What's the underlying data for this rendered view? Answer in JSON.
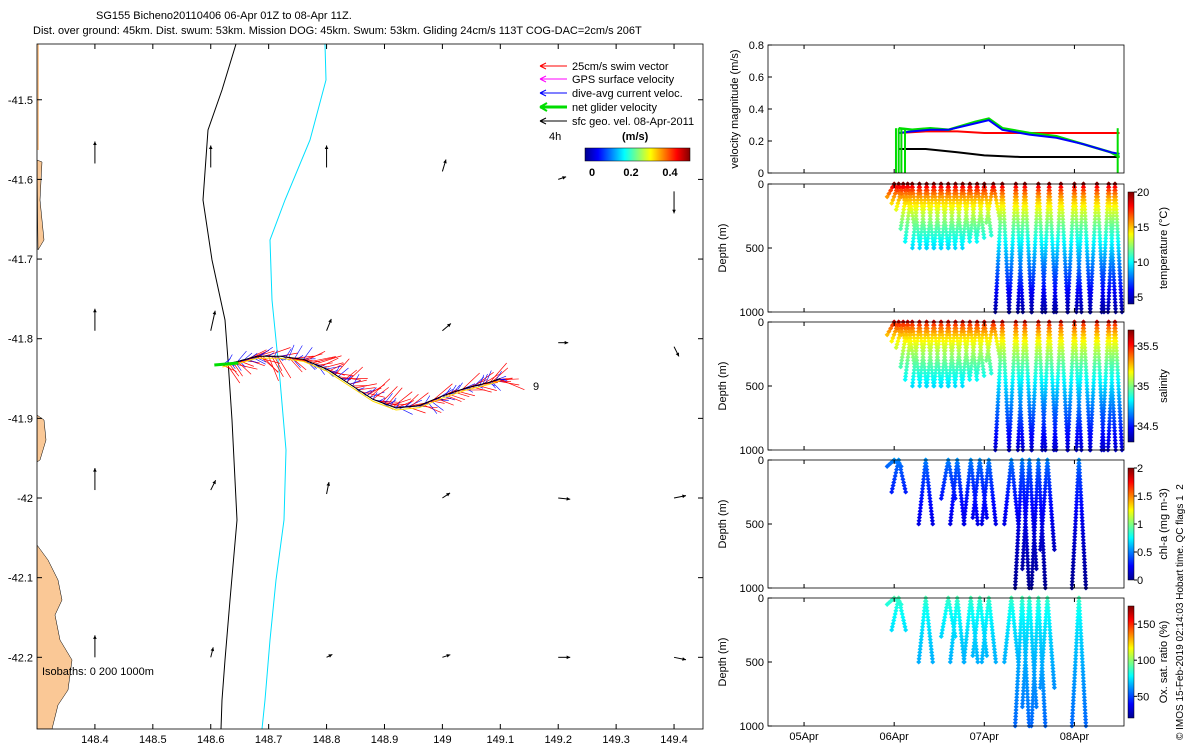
{
  "header": {
    "title_line1": "SG155 Bicheno20110406 06-Apr 01Z to 08-Apr 11Z.",
    "title_line2": "Dist. over ground: 45km. Dist. swum: 53km. Mission DOG: 45km. Swum: 53km. Gliding 24cm/s 113T COG-DAC=2cm/s 206T"
  },
  "credit": "© IMOS 15-Feb-2019 02:14:03 Hobart time. QC flags 1  2",
  "colors": {
    "land": "#FAC896",
    "swim_vector": "#ff0000",
    "gps_velocity": "#ff00ff",
    "dive_avg_current": "#0000ff",
    "net_glider": "#00dd00",
    "sfc_geo": "#000000",
    "isobath_200": "#00e0ff"
  },
  "chart_data": [
    {
      "type": "map",
      "name": "track_map",
      "xlim": [
        148.3,
        149.45
      ],
      "ylim": [
        -42.29,
        -41.43
      ],
      "xticks": [
        "148.4",
        "148.5",
        "148.6",
        "148.7",
        "148.8",
        "148.9",
        "149",
        "149.1",
        "149.2",
        "149.3",
        "149.4"
      ],
      "yticks": [
        "-41.5",
        "-41.6",
        "-41.7",
        "-41.8",
        "-41.9",
        "-42",
        "-42.1",
        "-42.2"
      ],
      "legend": [
        "25cm/s swim vector",
        "GPS surface velocity",
        "dive-avg current veloc.",
        "net glider velocity",
        "sfc geo. vel. 08-Apr-2011"
      ],
      "legend_placement": "top-right",
      "colorbar": {
        "label": "(m/s)",
        "ticks": [
          "0",
          "0.2",
          "0.4"
        ],
        "side_label": "4h"
      },
      "end_label": "9",
      "isobaths_label": "Isobaths:  0    200   1000m",
      "track": [
        [
          148.62,
          -41.833
        ],
        [
          148.65,
          -41.828
        ],
        [
          148.68,
          -41.822
        ],
        [
          148.72,
          -41.822
        ],
        [
          148.76,
          -41.826
        ],
        [
          148.8,
          -41.838
        ],
        [
          148.84,
          -41.857
        ],
        [
          148.88,
          -41.876
        ],
        [
          148.92,
          -41.887
        ],
        [
          148.96,
          -41.884
        ],
        [
          149.0,
          -41.872
        ],
        [
          149.04,
          -41.862
        ],
        [
          149.08,
          -41.855
        ],
        [
          149.1,
          -41.85
        ]
      ],
      "sfc_geo_vectors": [
        [
          148.4,
          -41.58,
          0.0,
          1.0
        ],
        [
          148.6,
          -41.585,
          0.0,
          1.0
        ],
        [
          148.8,
          -41.585,
          0.0,
          1.0
        ],
        [
          149.0,
          -41.59,
          0.15,
          0.5
        ],
        [
          149.2,
          -41.6,
          0.3,
          0.1
        ],
        [
          149.4,
          -41.615,
          0.0,
          -1.0
        ],
        [
          148.4,
          -41.79,
          0.0,
          1.0
        ],
        [
          148.6,
          -41.79,
          0.2,
          0.9
        ],
        [
          148.8,
          -41.79,
          0.2,
          0.5
        ],
        [
          149.0,
          -41.79,
          0.35,
          0.3
        ],
        [
          149.2,
          -41.805,
          0.4,
          0.0
        ],
        [
          149.4,
          -41.81,
          0.2,
          -0.4
        ],
        [
          148.4,
          -41.99,
          0.0,
          1.0
        ],
        [
          148.6,
          -41.99,
          0.2,
          0.4
        ],
        [
          148.8,
          -41.995,
          0.1,
          0.5
        ],
        [
          149.0,
          -42.0,
          0.3,
          0.2
        ],
        [
          149.2,
          -42.0,
          0.5,
          -0.05
        ],
        [
          149.4,
          -42.0,
          0.5,
          0.1
        ],
        [
          148.4,
          -42.2,
          0.0,
          1.0
        ],
        [
          148.6,
          -42.2,
          0.1,
          0.4
        ],
        [
          148.8,
          -42.2,
          0.2,
          0.1
        ],
        [
          149.0,
          -42.2,
          0.3,
          0.1
        ],
        [
          149.2,
          -42.2,
          0.5,
          0.0
        ],
        [
          149.4,
          -42.2,
          0.5,
          -0.1
        ]
      ]
    },
    {
      "type": "line",
      "name": "velocity_panel",
      "ylabel": "velocity magnitude (m/s)",
      "ylim": [
        0,
        0.8
      ],
      "yticks": [
        "0",
        "0.2",
        "0.4",
        "0.6",
        "0.8"
      ],
      "series": [
        {
          "color": "#ff0000",
          "x": [
            6.05,
            6.35,
            6.7,
            7.0,
            7.25,
            8.5
          ],
          "y": [
            0.25,
            0.26,
            0.26,
            0.25,
            0.25,
            0.25
          ]
        },
        {
          "color": "#000000",
          "x": [
            6.05,
            6.35,
            6.7,
            7.0,
            7.4,
            8.0,
            8.5
          ],
          "y": [
            0.15,
            0.15,
            0.13,
            0.11,
            0.1,
            0.1,
            0.1
          ]
        },
        {
          "color": "#00dd00",
          "x": [
            6.05,
            6.2,
            6.4,
            6.6,
            6.9,
            7.05,
            7.2,
            7.5,
            7.8,
            8.1,
            8.4,
            8.5
          ],
          "y": [
            0.28,
            0.27,
            0.28,
            0.27,
            0.32,
            0.34,
            0.28,
            0.25,
            0.23,
            0.18,
            0.13,
            0.1
          ]
        },
        {
          "color": "#0000ff",
          "x": [
            6.05,
            6.2,
            6.4,
            6.6,
            6.9,
            7.05,
            7.2,
            7.5,
            7.8,
            8.1,
            8.4,
            8.5
          ],
          "y": [
            0.25,
            0.26,
            0.27,
            0.27,
            0.31,
            0.33,
            0.27,
            0.24,
            0.22,
            0.18,
            0.13,
            0.12
          ]
        }
      ]
    },
    {
      "type": "scatter",
      "name": "temperature_panel",
      "ylabel": "Depth (m)",
      "cbar_label": "temperature (°C)",
      "cbar_ticks": [
        "5",
        "10",
        "15",
        "20"
      ],
      "clim": [
        4,
        20
      ],
      "ylim": [
        1000,
        0
      ],
      "yticks": [
        "0",
        "500",
        "1000"
      ],
      "surface_value": 20,
      "bottom_value": 4.5,
      "dives": [
        [
          6.0,
          100
        ],
        [
          6.05,
          150
        ],
        [
          6.1,
          200
        ],
        [
          6.15,
          350
        ],
        [
          6.2,
          450
        ],
        [
          6.28,
          500
        ],
        [
          6.36,
          500
        ],
        [
          6.44,
          500
        ],
        [
          6.52,
          500
        ],
        [
          6.6,
          500
        ],
        [
          6.68,
          500
        ],
        [
          6.76,
          450
        ],
        [
          6.84,
          450
        ],
        [
          6.92,
          420
        ],
        [
          7.0,
          400
        ],
        [
          7.1,
          300
        ],
        [
          7.2,
          1000
        ],
        [
          7.35,
          1000
        ],
        [
          7.45,
          1000
        ],
        [
          7.6,
          1000
        ],
        [
          7.72,
          1000
        ],
        [
          7.85,
          1000
        ],
        [
          8.0,
          1000
        ],
        [
          8.1,
          1000
        ],
        [
          8.25,
          1000
        ],
        [
          8.38,
          1000
        ],
        [
          8.45,
          1000
        ]
      ]
    },
    {
      "type": "scatter",
      "name": "salinity_panel",
      "ylabel": "Depth (m)",
      "cbar_label": "salinity",
      "cbar_ticks": [
        "34.5",
        "35",
        "35.5"
      ],
      "clim": [
        34.3,
        35.7
      ],
      "ylim": [
        1000,
        0
      ],
      "yticks": [
        "0",
        "500",
        "1000"
      ],
      "surface_value": 35.6,
      "bottom_value": 34.4,
      "dives": [
        [
          6.0,
          100
        ],
        [
          6.05,
          150
        ],
        [
          6.1,
          200
        ],
        [
          6.15,
          350
        ],
        [
          6.2,
          450
        ],
        [
          6.28,
          500
        ],
        [
          6.36,
          500
        ],
        [
          6.44,
          500
        ],
        [
          6.52,
          500
        ],
        [
          6.6,
          500
        ],
        [
          6.68,
          500
        ],
        [
          6.76,
          450
        ],
        [
          6.84,
          450
        ],
        [
          6.92,
          420
        ],
        [
          7.0,
          400
        ],
        [
          7.1,
          300
        ],
        [
          7.2,
          1000
        ],
        [
          7.35,
          1000
        ],
        [
          7.45,
          1000
        ],
        [
          7.6,
          1000
        ],
        [
          7.72,
          1000
        ],
        [
          7.85,
          1000
        ],
        [
          8.0,
          1000
        ],
        [
          8.1,
          1000
        ],
        [
          8.25,
          1000
        ],
        [
          8.38,
          1000
        ],
        [
          8.45,
          1000
        ]
      ]
    },
    {
      "type": "scatter",
      "name": "chla_panel",
      "ylabel": "Depth (m)",
      "cbar_label": "chl-a (mg m-3)",
      "cbar_ticks": [
        "0",
        "0.5",
        "1",
        "1.5",
        "2"
      ],
      "clim": [
        0,
        2
      ],
      "ylim": [
        1000,
        0
      ],
      "yticks": [
        "0",
        "500",
        "1000"
      ],
      "surface_value": 0.55,
      "bottom_value": 0.03,
      "dives": [
        [
          6.0,
          50
        ],
        [
          6.05,
          250
        ],
        [
          6.35,
          500
        ],
        [
          6.6,
          300
        ],
        [
          6.7,
          500
        ],
        [
          6.85,
          500
        ],
        [
          6.95,
          450
        ],
        [
          7.05,
          500
        ],
        [
          7.3,
          500
        ],
        [
          7.42,
          1000
        ],
        [
          7.5,
          850
        ],
        [
          7.6,
          1000
        ],
        [
          7.7,
          700
        ],
        [
          8.05,
          1000
        ]
      ]
    },
    {
      "type": "scatter",
      "name": "oxygen_panel",
      "ylabel": "Depth (m)",
      "cbar_label": "Ox. sat. ratio (%)",
      "cbar_ticks": [
        "50",
        "100",
        "150"
      ],
      "clim": [
        20,
        175
      ],
      "ylim": [
        1000,
        0
      ],
      "yticks": [
        "0",
        "500",
        "1000"
      ],
      "xticks": [
        "05Apr",
        "06Apr",
        "07Apr",
        "08Apr"
      ],
      "xtick_days": [
        5,
        6,
        7,
        8
      ],
      "xlim": [
        4.6,
        8.55
      ],
      "surface_value": 90,
      "bottom_value": 55,
      "dives": [
        [
          6.0,
          50
        ],
        [
          6.05,
          250
        ],
        [
          6.35,
          500
        ],
        [
          6.6,
          300
        ],
        [
          6.7,
          500
        ],
        [
          6.85,
          500
        ],
        [
          6.95,
          450
        ],
        [
          7.05,
          500
        ],
        [
          7.3,
          500
        ],
        [
          7.42,
          1000
        ],
        [
          7.5,
          850
        ],
        [
          7.6,
          1000
        ],
        [
          7.7,
          700
        ],
        [
          8.05,
          1000
        ]
      ]
    }
  ]
}
